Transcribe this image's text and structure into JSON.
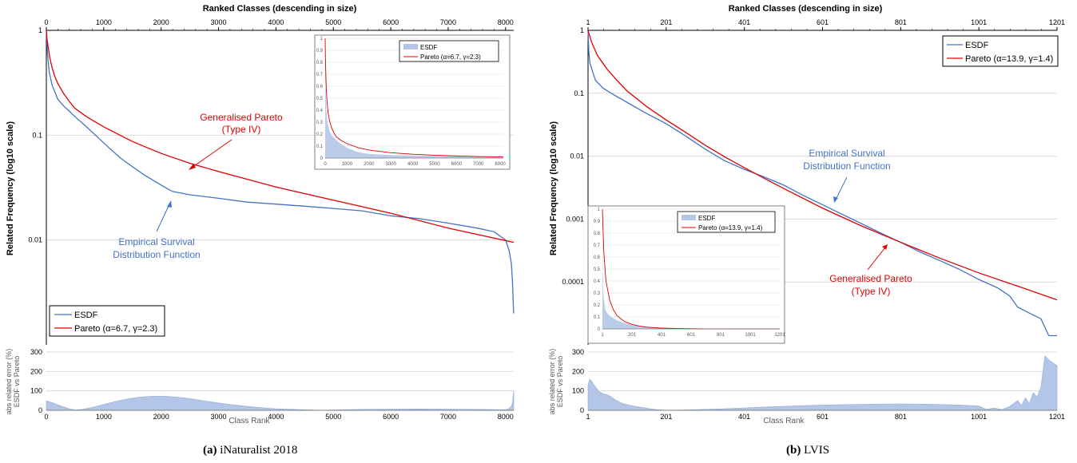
{
  "captions": {
    "a_tag": "(a)",
    "a_text": "iNaturalist 2018",
    "b_tag": "(b)",
    "b_text": "LVIS"
  },
  "colors": {
    "esdf": "#4472c4",
    "pareto": "#e00000",
    "area": "#b4c6e7",
    "grid": "#d9d9d9"
  },
  "chart_data": [
    {
      "id": "inat_main",
      "type": "line",
      "top_axis_label": "Ranked Classes (descending in size)",
      "ylabel": "Related Frequency (log10 scale)",
      "x_ticks": [
        "0",
        "1000",
        "2000",
        "3000",
        "4000",
        "5000",
        "6000",
        "7000",
        "8000"
      ],
      "x_tick_values": [
        0,
        1000,
        2000,
        3000,
        4000,
        5000,
        6000,
        7000,
        8000
      ],
      "xlim": [
        0,
        8142
      ],
      "y_scale": "log10",
      "y_ticks": [
        "1",
        "0.1",
        "0.01"
      ],
      "y_tick_values": [
        1,
        0.1,
        0.01
      ],
      "ylim": [
        0.001,
        1
      ],
      "legend_placement": "bottom-left",
      "series": [
        {
          "name": "ESDF",
          "color_key": "esdf",
          "x": [
            0,
            20,
            50,
            100,
            200,
            300,
            400,
            500,
            700,
            900,
            1100,
            1300,
            1500,
            1700,
            1900,
            2100,
            2200,
            2500,
            3000,
            3500,
            4000,
            4500,
            5000,
            5500,
            6000,
            6500,
            7000,
            7500,
            7800,
            8000,
            8060,
            8100,
            8120,
            8140
          ],
          "y": [
            1,
            0.6,
            0.4,
            0.3,
            0.22,
            0.19,
            0.17,
            0.15,
            0.12,
            0.095,
            0.075,
            0.06,
            0.05,
            0.042,
            0.036,
            0.031,
            0.029,
            0.027,
            0.025,
            0.023,
            0.022,
            0.021,
            0.02,
            0.019,
            0.017,
            0.016,
            0.0145,
            0.013,
            0.012,
            0.01,
            0.008,
            0.006,
            0.004,
            0.002
          ]
        },
        {
          "name": "Pareto (α=6.7, γ=2.3)",
          "color_key": "pareto",
          "x": [
            0,
            10,
            30,
            60,
            100,
            150,
            200,
            300,
            400,
            500,
            700,
            1000,
            1500,
            2000,
            2500,
            3000,
            4000,
            5000,
            6000,
            7000,
            8142
          ],
          "y": [
            1,
            0.85,
            0.7,
            0.55,
            0.44,
            0.36,
            0.31,
            0.25,
            0.21,
            0.18,
            0.15,
            0.12,
            0.087,
            0.067,
            0.054,
            0.045,
            0.032,
            0.024,
            0.018,
            0.013,
            0.0095
          ]
        }
      ],
      "annotations": [
        {
          "text1": "Generalised Pareto",
          "text2": "(Type IV)",
          "color_key": "pareto"
        },
        {
          "text1": "Empirical Survival",
          "text2": "Distribution Function",
          "color_key": "esdf"
        }
      ]
    },
    {
      "id": "inat_inset",
      "type": "area",
      "x_ticks": [
        "0",
        "1000",
        "2000",
        "3000",
        "4000",
        "5000",
        "6000",
        "7000",
        "8000"
      ],
      "x_tick_values": [
        0,
        1000,
        2000,
        3000,
        4000,
        5000,
        6000,
        7000,
        8000
      ],
      "xlim": [
        0,
        8142
      ],
      "y_ticks": [
        "0",
        "0.1",
        "0.2",
        "0.3",
        "0.4",
        "0.5",
        "0.6",
        "0.7",
        "0.8",
        "0.9",
        "1"
      ],
      "ylim": [
        0,
        1
      ],
      "legend_placement": "top-center",
      "series": [
        {
          "name": "ESDF",
          "color_key": "area",
          "x": [
            0,
            20,
            50,
            100,
            200,
            300,
            500,
            700,
            1000,
            1500,
            2000,
            3000,
            4000,
            5000,
            6000,
            7000,
            8142
          ],
          "y": [
            1,
            0.6,
            0.4,
            0.3,
            0.22,
            0.19,
            0.15,
            0.12,
            0.085,
            0.05,
            0.035,
            0.025,
            0.022,
            0.02,
            0.017,
            0.0145,
            0.008
          ]
        },
        {
          "name": "Pareto (α=6.7, γ=2.3)",
          "color_key": "pareto",
          "x": [
            0,
            10,
            30,
            60,
            100,
            150,
            200,
            300,
            400,
            500,
            700,
            1000,
            1500,
            2000,
            3000,
            4000,
            5000,
            6000,
            7000,
            8142
          ],
          "y": [
            1,
            0.85,
            0.7,
            0.55,
            0.44,
            0.36,
            0.31,
            0.25,
            0.21,
            0.18,
            0.15,
            0.12,
            0.087,
            0.067,
            0.045,
            0.032,
            0.024,
            0.018,
            0.013,
            0.0095
          ]
        }
      ]
    },
    {
      "id": "inat_error",
      "type": "area",
      "ylabel1": "abs related error (%)",
      "ylabel2": "ESDF vs Pareto",
      "xlabel": "Class Rank",
      "x_ticks": [
        "0",
        "1000",
        "2000",
        "3000",
        "4000",
        "5000",
        "6000",
        "7000",
        "8000"
      ],
      "x_tick_values": [
        0,
        1000,
        2000,
        3000,
        4000,
        5000,
        6000,
        7000,
        8000
      ],
      "xlim": [
        0,
        8142
      ],
      "y_ticks": [
        "0",
        "100",
        "200",
        "300"
      ],
      "y_tick_values": [
        0,
        100,
        200,
        300
      ],
      "ylim": [
        0,
        300
      ],
      "series": [
        {
          "name": "",
          "color_key": "area",
          "x": [
            0,
            100,
            200,
            300,
            400,
            500,
            600,
            800,
            1000,
            1200,
            1400,
            1600,
            1800,
            2000,
            2200,
            2400,
            2600,
            2800,
            3000,
            3200,
            3500,
            3800,
            4000,
            4500,
            4800,
            5000,
            5500,
            6000,
            6500,
            7000,
            7500,
            7800,
            8000,
            8050,
            8100,
            8120,
            8142
          ],
          "y": [
            48,
            40,
            28,
            18,
            8,
            2,
            4,
            15,
            30,
            45,
            58,
            67,
            72,
            73,
            70,
            64,
            56,
            46,
            38,
            30,
            20,
            12,
            8,
            3,
            1,
            2,
            5,
            6,
            7,
            6,
            5,
            4,
            3,
            8,
            20,
            40,
            100
          ]
        }
      ]
    },
    {
      "id": "lvis_main",
      "type": "line",
      "top_axis_label": "Ranked Classes (descending in size)",
      "ylabel": "Related Frequency (log10 scale)",
      "x_ticks": [
        "1",
        "201",
        "401",
        "601",
        "801",
        "1001",
        "1201"
      ],
      "x_tick_values": [
        1,
        201,
        401,
        601,
        801,
        1001,
        1201
      ],
      "xlim": [
        1,
        1201
      ],
      "y_scale": "log10",
      "y_ticks": [
        "1",
        "0.1",
        "0.01",
        "0.001",
        "0.0001"
      ],
      "y_tick_values": [
        1,
        0.1,
        0.01,
        0.001,
        0.0001
      ],
      "ylim": [
        1e-05,
        1
      ],
      "legend_placement": "top-right",
      "series": [
        {
          "name": "ESDF",
          "color_key": "esdf",
          "x": [
            1,
            3,
            6,
            10,
            20,
            40,
            60,
            100,
            150,
            200,
            250,
            300,
            350,
            400,
            450,
            500,
            550,
            600,
            650,
            700,
            750,
            800,
            850,
            900,
            950,
            1000,
            1050,
            1080,
            1100,
            1130,
            1160,
            1180,
            1201
          ],
          "y": [
            1,
            0.45,
            0.3,
            0.25,
            0.16,
            0.12,
            0.1,
            0.072,
            0.048,
            0.033,
            0.021,
            0.013,
            0.0085,
            0.0062,
            0.0047,
            0.0035,
            0.0024,
            0.0017,
            0.0012,
            0.00085,
            0.0006,
            0.00043,
            0.0003,
            0.00022,
            0.00016,
            0.00011,
            8e-05,
            6e-05,
            4e-05,
            3.2e-05,
            2.6e-05,
            1.4e-05,
            1.4e-05
          ]
        },
        {
          "name": "Pareto (α=13.9, γ=1.4)",
          "color_key": "pareto",
          "x": [
            1,
            10,
            25,
            50,
            75,
            100,
            150,
            200,
            250,
            300,
            350,
            400,
            450,
            500,
            600,
            700,
            800,
            900,
            1000,
            1100,
            1201
          ],
          "y": [
            1,
            0.65,
            0.4,
            0.24,
            0.16,
            0.11,
            0.062,
            0.038,
            0.024,
            0.015,
            0.0098,
            0.0066,
            0.0045,
            0.0031,
            0.0015,
            0.00078,
            0.00043,
            0.00024,
            0.00014,
            8.6e-05,
            5.2e-05
          ]
        }
      ],
      "annotations": [
        {
          "text1": "Empirical Survival",
          "text2": "Distribution Function",
          "color_key": "esdf"
        },
        {
          "text1": "Generalised Pareto",
          "text2": "(Type IV)",
          "color_key": "pareto"
        }
      ]
    },
    {
      "id": "lvis_inset",
      "type": "area",
      "x_ticks": [
        "1",
        "201",
        "401",
        "601",
        "801",
        "1001",
        "1201"
      ],
      "x_tick_values": [
        1,
        201,
        401,
        601,
        801,
        1001,
        1201
      ],
      "xlim": [
        1,
        1201
      ],
      "y_ticks": [
        "0",
        "0.1",
        "0.2",
        "0.3",
        "0.4",
        "0.5",
        "0.6",
        "0.7",
        "0.8",
        "0.9",
        "1"
      ],
      "ylim": [
        0,
        1
      ],
      "legend_placement": "top-left",
      "series": [
        {
          "name": "ESDF",
          "color_key": "area",
          "x": [
            1,
            3,
            6,
            10,
            20,
            40,
            60,
            100,
            150,
            200,
            300,
            400,
            600,
            800,
            1000,
            1201
          ],
          "y": [
            1,
            0.45,
            0.3,
            0.25,
            0.16,
            0.12,
            0.1,
            0.072,
            0.048,
            0.033,
            0.013,
            0.0062,
            0.0017,
            0.00043,
            0.00011,
            1.4e-05
          ]
        },
        {
          "name": "Pareto (α=13.9, γ=1.4)",
          "color_key": "pareto",
          "x": [
            1,
            10,
            25,
            50,
            75,
            100,
            150,
            200,
            250,
            300,
            400,
            500,
            700,
            900,
            1201
          ],
          "y": [
            1,
            0.65,
            0.4,
            0.24,
            0.16,
            0.11,
            0.062,
            0.038,
            0.024,
            0.015,
            0.0066,
            0.0031,
            0.00078,
            0.00024,
            5.2e-05
          ]
        }
      ]
    },
    {
      "id": "lvis_error",
      "type": "area",
      "ylabel1": "abs related error (%)",
      "ylabel2": "ESDF vs Pareto",
      "xlabel": "Class Rank",
      "x_ticks": [
        "1",
        "201",
        "401",
        "601",
        "801",
        "1001",
        "1201"
      ],
      "x_tick_values": [
        1,
        201,
        401,
        601,
        801,
        1001,
        1201
      ],
      "xlim": [
        1,
        1201
      ],
      "y_ticks": [
        "0",
        "100",
        "200",
        "300"
      ],
      "y_tick_values": [
        0,
        100,
        200,
        300
      ],
      "ylim": [
        0,
        300
      ],
      "series": [
        {
          "name": "",
          "color_key": "area",
          "x": [
            1,
            5,
            10,
            20,
            30,
            40,
            50,
            60,
            70,
            80,
            90,
            100,
            120,
            140,
            160,
            180,
            200,
            250,
            300,
            350,
            400,
            450,
            500,
            550,
            600,
            650,
            700,
            750,
            800,
            850,
            900,
            950,
            1000,
            1020,
            1040,
            1060,
            1080,
            1100,
            1110,
            1120,
            1130,
            1140,
            1150,
            1160,
            1170,
            1180,
            1190,
            1201
          ],
          "y": [
            130,
            160,
            150,
            120,
            95,
            85,
            80,
            70,
            55,
            45,
            35,
            30,
            20,
            15,
            8,
            3,
            1,
            2,
            5,
            8,
            12,
            17,
            20,
            24,
            27,
            29,
            31,
            32,
            33,
            32,
            30,
            27,
            22,
            5,
            12,
            4,
            20,
            50,
            25,
            65,
            35,
            90,
            70,
            120,
            280,
            260,
            245,
            230
          ]
        }
      ]
    }
  ]
}
